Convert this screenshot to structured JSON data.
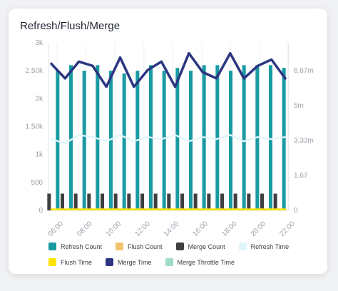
{
  "chart_data": {
    "type": "bar+line",
    "title": "Refresh/Flush/Merge",
    "x_ticks": [
      "06:00",
      "08:00",
      "10:00",
      "12:00",
      "14:00",
      "16:00",
      "18:00",
      "20:00",
      "22:00"
    ],
    "y_left_ticks": [
      "0",
      "500",
      "1k",
      "1.50k",
      "2k",
      "2.50k",
      "3k"
    ],
    "y_left_lim": [
      0,
      3000
    ],
    "y_right_ticks": [
      "0",
      "1.67",
      "3.33m",
      "5m",
      "6.67m"
    ],
    "y_right_lim": [
      0,
      8
    ],
    "grid": true,
    "legend_position": "bottom",
    "series": [
      {
        "name": "Refresh Count",
        "kind": "bar",
        "axis": "left",
        "color": "#1a9aa3",
        "values": [
          2500,
          2600,
          2500,
          2600,
          2500,
          2450,
          2500,
          2600,
          2500,
          2550,
          2500,
          2600,
          2600,
          2500,
          2600,
          2600,
          2600,
          2550
        ]
      },
      {
        "name": "Merge Count",
        "kind": "bar",
        "axis": "left",
        "color": "#3f3f3f",
        "values": [
          300,
          300,
          300,
          300,
          300,
          300,
          300,
          300,
          300,
          300,
          300,
          300,
          300,
          300,
          300,
          300,
          300,
          300
        ]
      },
      {
        "name": "Flush Count",
        "kind": "bar",
        "axis": "left",
        "color": "#f0c46a",
        "values": [
          20,
          20,
          20,
          20,
          20,
          20,
          20,
          20,
          20,
          20,
          20,
          20,
          20,
          20,
          20,
          20,
          20,
          20
        ]
      },
      {
        "name": "Flush Time",
        "kind": "line",
        "axis": "right",
        "color": "#ffe300",
        "values": [
          0.05,
          0.05,
          0.05,
          0.05,
          0.05,
          0.05,
          0.05,
          0.05,
          0.05,
          0.05,
          0.05,
          0.05,
          0.05,
          0.05,
          0.05,
          0.05,
          0.05,
          0.05
        ]
      },
      {
        "name": "Refresh Time",
        "kind": "line",
        "axis": "right",
        "color": "#dff6fb",
        "values": [
          3.4,
          3.2,
          3.6,
          3.5,
          3.3,
          3.6,
          3.3,
          3.5,
          3.4,
          3.6,
          3.3,
          3.5,
          3.4,
          3.6,
          3.3,
          3.5,
          3.4,
          3.5
        ]
      },
      {
        "name": "Merge Throttle Time",
        "kind": "line",
        "axis": "right",
        "color": "#9edcc4",
        "values": [
          0.02,
          0.02,
          0.02,
          0.02,
          0.02,
          0.02,
          0.02,
          0.02,
          0.02,
          0.02,
          0.02,
          0.02,
          0.02,
          0.02,
          0.02,
          0.02,
          0.02,
          0.02
        ]
      },
      {
        "name": "Merge Time",
        "kind": "line",
        "axis": "right",
        "color": "#2b3580",
        "values": [
          7.0,
          6.3,
          7.1,
          6.9,
          5.9,
          7.3,
          5.9,
          6.7,
          7.1,
          5.9,
          7.5,
          6.6,
          6.3,
          7.5,
          6.3,
          6.9,
          7.2,
          6.3
        ]
      }
    ]
  },
  "legend": [
    {
      "label": "Refresh Count",
      "color": "#1a9aa3"
    },
    {
      "label": "Flush Count",
      "color": "#f0c46a"
    },
    {
      "label": "Merge Count",
      "color": "#3f3f3f"
    },
    {
      "label": "Refresh Time",
      "color": "#dff6fb"
    },
    {
      "label": "Flush Time",
      "color": "#ffe300"
    },
    {
      "label": "Merge Time",
      "color": "#2b3580"
    },
    {
      "label": "Merge Throttle Time",
      "color": "#9edcc4"
    }
  ]
}
